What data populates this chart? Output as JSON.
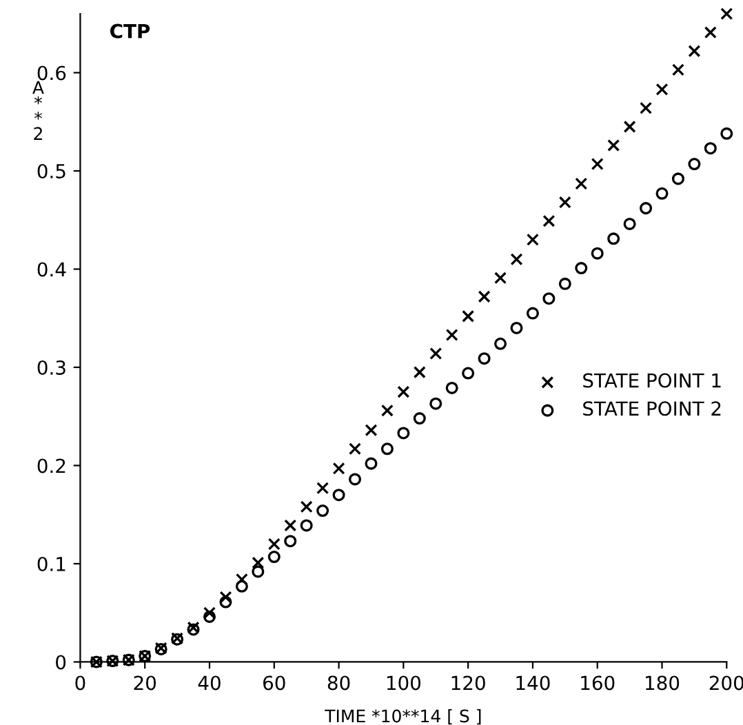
{
  "chart_data": {
    "type": "scatter",
    "title": "CTP",
    "xlabel": "TIME *10**14 [ S ]",
    "ylabel": "A**2",
    "x": [
      5,
      10,
      15,
      20,
      25,
      30,
      35,
      40,
      45,
      50,
      55,
      60,
      65,
      70,
      75,
      80,
      85,
      90,
      95,
      100,
      105,
      110,
      115,
      120,
      125,
      130,
      135,
      140,
      145,
      150,
      155,
      160,
      165,
      170,
      175,
      180,
      185,
      190,
      195,
      200
    ],
    "series": [
      {
        "name": "STATE POINT 1",
        "color": "#000000",
        "marker": "cross",
        "values": [
          0.0,
          0.001,
          0.002,
          0.006,
          0.014,
          0.024,
          0.035,
          0.05,
          0.066,
          0.084,
          0.101,
          0.12,
          0.139,
          0.158,
          0.177,
          0.197,
          0.217,
          0.236,
          0.256,
          0.275,
          0.295,
          0.314,
          0.333,
          0.352,
          0.372,
          0.391,
          0.41,
          0.43,
          0.449,
          0.468,
          0.487,
          0.507,
          0.526,
          0.545,
          0.564,
          0.583,
          0.603,
          0.622,
          0.641,
          0.66
        ]
      },
      {
        "name": "STATE POINT 2",
        "color": "#000000",
        "marker": "circle",
        "values": [
          0.0,
          0.001,
          0.002,
          0.006,
          0.013,
          0.023,
          0.033,
          0.046,
          0.061,
          0.077,
          0.092,
          0.107,
          0.123,
          0.139,
          0.154,
          0.17,
          0.186,
          0.202,
          0.217,
          0.233,
          0.248,
          0.263,
          0.279,
          0.294,
          0.309,
          0.324,
          0.34,
          0.355,
          0.37,
          0.385,
          0.401,
          0.416,
          0.431,
          0.446,
          0.462,
          0.477,
          0.492,
          0.507,
          0.523,
          0.538
        ]
      }
    ],
    "xlim": [
      0,
      200
    ],
    "ylim": [
      0,
      0.66
    ],
    "xticks": [
      0,
      20,
      40,
      60,
      80,
      100,
      120,
      140,
      160,
      180,
      200
    ],
    "yticks": [
      0,
      0.1,
      0.2,
      0.3,
      0.4,
      0.5,
      0.6
    ],
    "grid": false,
    "legend": "right"
  }
}
